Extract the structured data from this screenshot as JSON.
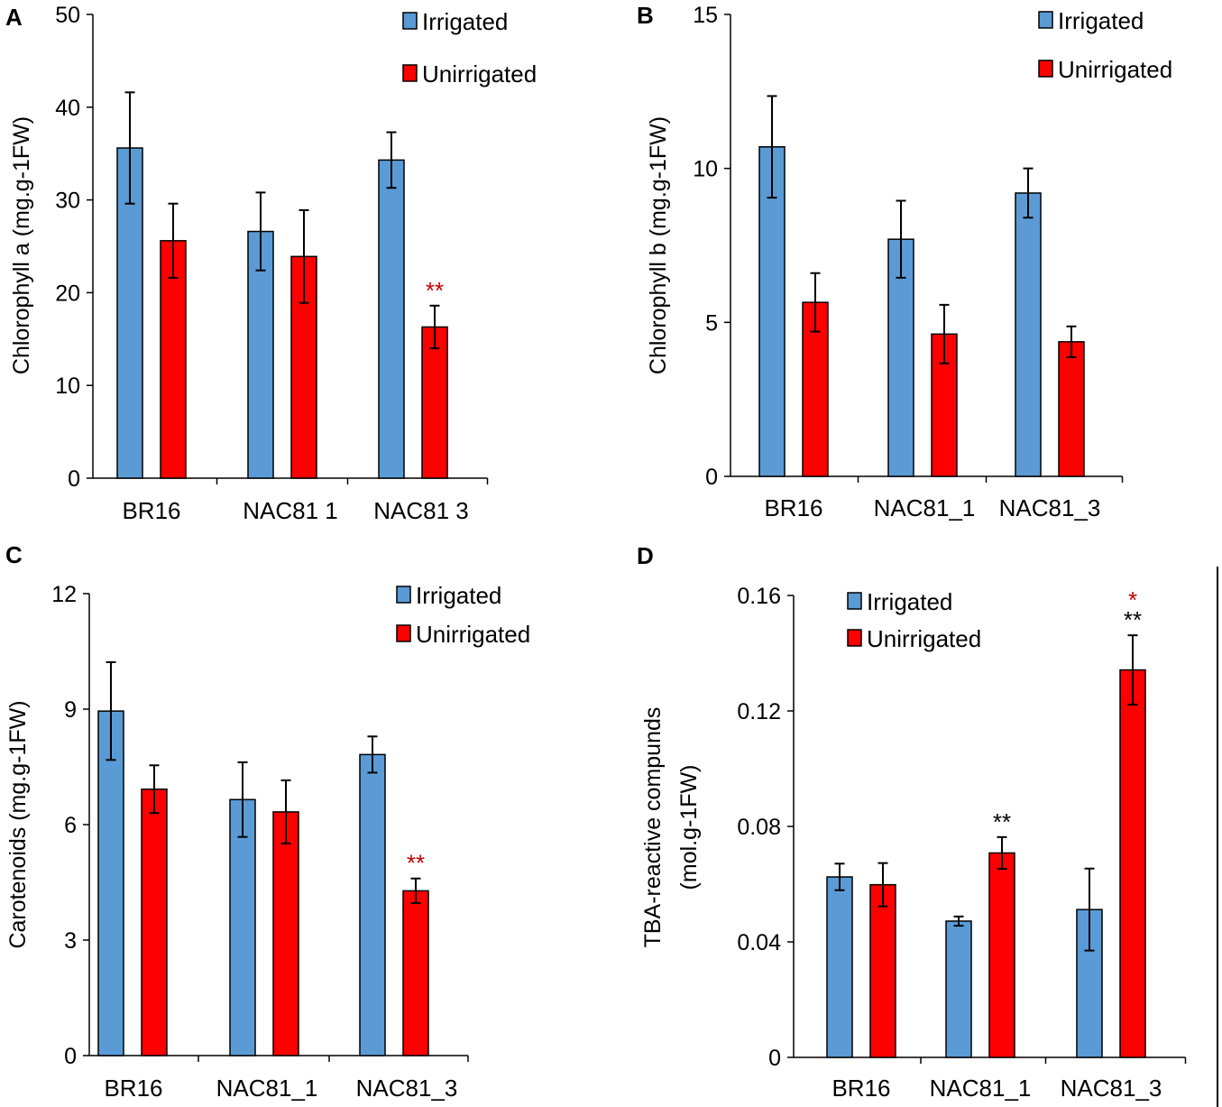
{
  "colors": {
    "irrigated": "#5b9bd5",
    "unirrigated": "#ff0000",
    "axis": "#000000",
    "star_red": "#c00000",
    "star_black": "#000000"
  },
  "chart_data": [
    {
      "panel": "A",
      "type": "bar",
      "categories": [
        "BR16",
        "NAC81_1",
        "NAC81_3"
      ],
      "category_labels": [
        "BR16",
        "NAC81  1",
        "NAC81  3"
      ],
      "series": [
        {
          "name": "Irrigated",
          "values": [
            35.6,
            26.6,
            34.3
          ],
          "errors": [
            6.0,
            4.2,
            3.0
          ]
        },
        {
          "name": "Unirrigated",
          "values": [
            25.6,
            23.9,
            16.3
          ],
          "errors": [
            4.0,
            5.0,
            2.3
          ]
        }
      ],
      "annotations": [
        {
          "category": 2,
          "series": 1,
          "text": "**",
          "color": "red"
        }
      ],
      "ylabel": "Chlorophyll a (mg.g-1FW)",
      "ylim": [
        0,
        50
      ],
      "yticks": [
        0,
        10,
        20,
        30,
        40,
        50
      ],
      "legend": [
        "Irrigated",
        "Unirrigated"
      ],
      "legend_position": "top-right"
    },
    {
      "panel": "B",
      "type": "bar",
      "categories": [
        "BR16",
        "NAC81_1",
        "NAC81_3"
      ],
      "category_labels": [
        "BR16",
        "NAC81_1",
        "NAC81_3"
      ],
      "series": [
        {
          "name": "Irrigated",
          "values": [
            10.7,
            7.7,
            9.2
          ],
          "errors": [
            1.65,
            1.25,
            0.8
          ]
        },
        {
          "name": "Unirrigated",
          "values": [
            5.65,
            4.62,
            4.37
          ],
          "errors": [
            0.95,
            0.95,
            0.5
          ]
        }
      ],
      "annotations": [],
      "ylabel": "Chlorophyll b (mg.g-1FW)",
      "ylim": [
        0,
        15
      ],
      "yticks": [
        0,
        5,
        10,
        15
      ],
      "legend": [
        "Irrigated",
        "Unirrigated"
      ],
      "legend_position": "top-right"
    },
    {
      "panel": "C",
      "type": "bar",
      "categories": [
        "BR16",
        "NAC81_1",
        "NAC81_3"
      ],
      "category_labels": [
        "BR16",
        "NAC81_1",
        "NAC81_3"
      ],
      "series": [
        {
          "name": "Irrigated",
          "values": [
            8.95,
            6.65,
            7.82
          ],
          "errors": [
            1.27,
            0.97,
            0.47
          ]
        },
        {
          "name": "Unirrigated",
          "values": [
            6.92,
            6.33,
            4.28
          ],
          "errors": [
            0.62,
            0.82,
            0.32
          ]
        }
      ],
      "annotations": [
        {
          "category": 2,
          "series": 1,
          "text": "**",
          "color": "red"
        }
      ],
      "ylabel": "Carotenoids (mg.g-1FW)",
      "ylim": [
        0,
        12
      ],
      "yticks": [
        0,
        3,
        6,
        9,
        12
      ],
      "legend": [
        "Irrigated",
        "Unirrigated"
      ],
      "legend_position": "top-right"
    },
    {
      "panel": "D",
      "type": "bar",
      "categories": [
        "BR16",
        "NAC81_1",
        "NAC81_3"
      ],
      "category_labels": [
        "BR16",
        "NAC81_1",
        "NAC81_3"
      ],
      "series": [
        {
          "name": "Irrigated",
          "values": [
            0.0625,
            0.0472,
            0.0512
          ],
          "errors": [
            0.0046,
            0.0016,
            0.0142
          ]
        },
        {
          "name": "Unirrigated",
          "values": [
            0.0598,
            0.0708,
            0.1342
          ],
          "errors": [
            0.0075,
            0.0055,
            0.012
          ]
        }
      ],
      "annotations": [
        {
          "category": 1,
          "series": 1,
          "text": "**",
          "color": "black"
        },
        {
          "category": 2,
          "series": 1,
          "text": "**",
          "color": "black"
        },
        {
          "category": 2,
          "series": 1,
          "text": "*",
          "color": "red",
          "level": 2
        }
      ],
      "ylabel": "TBA-reactive compunds",
      "ylabel2": "(mol.g-1FW)",
      "ylim": [
        0,
        0.16
      ],
      "yticks": [
        "0",
        "0.04",
        "0.08",
        "0.12",
        "0.16"
      ],
      "legend": [
        "Irrigated",
        "Unirrigated"
      ],
      "legend_position": "top-left"
    }
  ]
}
